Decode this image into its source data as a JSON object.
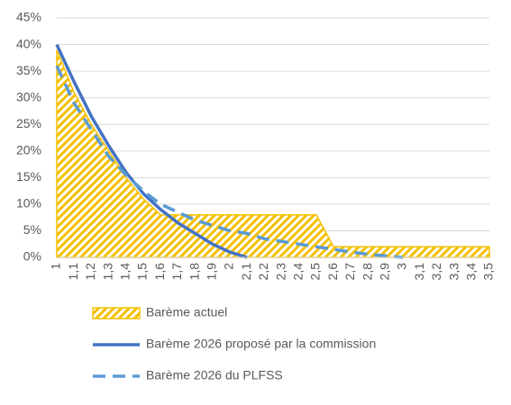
{
  "chart_data": {
    "type": "line",
    "categories": [
      "1",
      "1,1",
      "1,2",
      "1,3",
      "1,4",
      "1,5",
      "1,6",
      "1,7",
      "1,8",
      "1,9",
      "2",
      "2,1",
      "2,2",
      "2,3",
      "2,4",
      "2,5",
      "2,6",
      "2,7",
      "2,8",
      "2,9",
      "3",
      "3,1",
      "3,2",
      "3,3",
      "3,4",
      "3,5"
    ],
    "ylim": [
      0,
      45
    ],
    "yticks": [
      {
        "value": 0,
        "label": "0%"
      },
      {
        "value": 5,
        "label": "5%"
      },
      {
        "value": 10,
        "label": "10%"
      },
      {
        "value": 15,
        "label": "15%"
      },
      {
        "value": 20,
        "label": "20%"
      },
      {
        "value": 25,
        "label": "25%"
      },
      {
        "value": 30,
        "label": "30%"
      },
      {
        "value": 35,
        "label": "35%"
      },
      {
        "value": 40,
        "label": "40%"
      },
      {
        "value": 45,
        "label": "45%"
      }
    ],
    "grid": true,
    "series": [
      {
        "name": "Barème actuel",
        "color": "#f5c000",
        "style": "area",
        "values": [
          39,
          31,
          25,
          20,
          15,
          11,
          8,
          8,
          8,
          8,
          8,
          8,
          8,
          8,
          8,
          8,
          2,
          2,
          2,
          2,
          2,
          2,
          2,
          2,
          2,
          2
        ]
      },
      {
        "name": "Barème 2026 proposé par la commission",
        "color": "#4472c4",
        "style": "solid",
        "values": [
          40,
          33,
          26.5,
          21,
          16,
          12,
          9,
          6.5,
          4.5,
          2.5,
          1,
          0,
          null,
          null,
          null,
          null,
          null,
          null,
          null,
          null,
          null,
          null,
          null,
          null,
          null,
          null
        ]
      },
      {
        "name": "Barème 2026 du PLFSS",
        "color": "#5b9bd5",
        "style": "dashed",
        "values": [
          36,
          29,
          24,
          19,
          15.5,
          12.5,
          10,
          8.5,
          7,
          6,
          5,
          4.5,
          3.5,
          3,
          2.5,
          2,
          1.5,
          1,
          0.6,
          0.3,
          0,
          null,
          null,
          null,
          null,
          null
        ]
      }
    ]
  }
}
